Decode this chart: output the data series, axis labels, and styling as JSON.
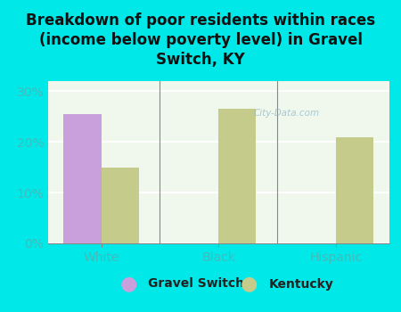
{
  "title": "Breakdown of poor residents within races\n(income below poverty level) in Gravel\nSwitch, KY",
  "categories": [
    "White",
    "Black",
    "Hispanic"
  ],
  "gravel_switch_values": [
    25.5,
    0,
    0
  ],
  "kentucky_values": [
    15.0,
    26.5,
    21.0
  ],
  "gravel_switch_color": "#c9a0dc",
  "kentucky_color": "#c5cb8a",
  "background_color": "#00e8e8",
  "plot_bg_top": "#e8f5e0",
  "plot_bg_bottom": "#f8fff8",
  "ylim": [
    0,
    32
  ],
  "yticks": [
    0,
    10,
    20,
    30
  ],
  "ytick_labels": [
    "0%",
    "10%",
    "20%",
    "30%"
  ],
  "legend_gravel_switch": "Gravel Switch",
  "legend_kentucky": "Kentucky",
  "bar_width": 0.32,
  "title_fontsize": 12,
  "tick_fontsize": 10,
  "legend_fontsize": 10,
  "tick_color": "#44bbbb",
  "watermark": "City-Data.com"
}
